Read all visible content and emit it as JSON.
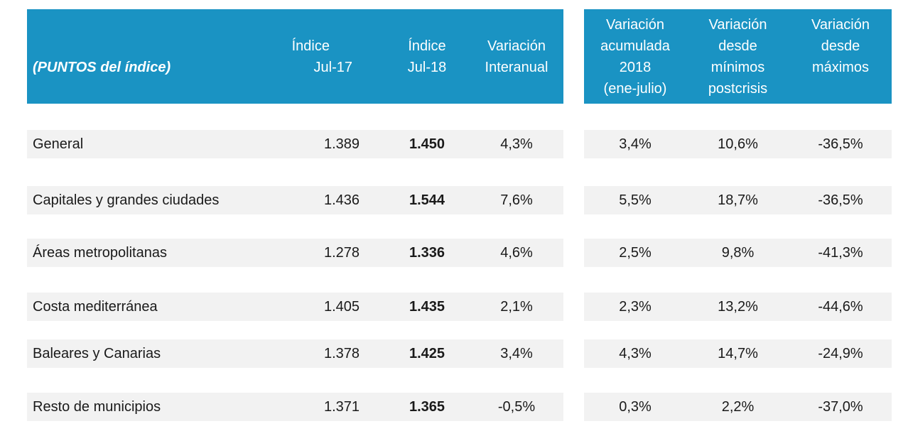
{
  "colors": {
    "header_blue": "#1a93c3",
    "row_gray": "#f2f2f2",
    "header_text": "#ffffff",
    "body_text": "#1a1a1a"
  },
  "header": {
    "title": "(PUNTOS del índice)",
    "left_columns": [
      {
        "lines": [
          "Índice",
          "Jul-17"
        ]
      },
      {
        "lines": [
          "Índice",
          "Jul-18"
        ]
      },
      {
        "lines": [
          "Variación",
          "Interanual"
        ]
      }
    ],
    "right_columns": [
      {
        "lines": [
          "Variación",
          "acumulada",
          "2018",
          "(ene-julio)"
        ]
      },
      {
        "lines": [
          "Variación",
          "desde",
          "mínimos",
          "postcrisis"
        ]
      },
      {
        "lines": [
          "Variación",
          "desde",
          "máximos"
        ]
      }
    ]
  },
  "rows": [
    {
      "label": "General",
      "indice_jul17": "1.389",
      "indice_jul18": "1.450",
      "variacion_interanual": "4,3%",
      "variacion_acumulada_2018": "3,4%",
      "variacion_desde_minimos": "10,6%",
      "variacion_desde_maximos": "-36,5%"
    },
    {
      "label": "Capitales y grandes ciudades",
      "indice_jul17": "1.436",
      "indice_jul18": "1.544",
      "variacion_interanual": "7,6%",
      "variacion_acumulada_2018": "5,5%",
      "variacion_desde_minimos": "18,7%",
      "variacion_desde_maximos": "-36,5%"
    },
    {
      "label": "Áreas metropolitanas",
      "indice_jul17": "1.278",
      "indice_jul18": "1.336",
      "variacion_interanual": "4,6%",
      "variacion_acumulada_2018": "2,5%",
      "variacion_desde_minimos": "9,8%",
      "variacion_desde_maximos": "-41,3%"
    },
    {
      "label": "Costa mediterránea",
      "indice_jul17": "1.405",
      "indice_jul18": "1.435",
      "variacion_interanual": "2,1%",
      "variacion_acumulada_2018": "2,3%",
      "variacion_desde_minimos": "13,2%",
      "variacion_desde_maximos": "-44,6%"
    },
    {
      "label": "Baleares y Canarias",
      "indice_jul17": "1.378",
      "indice_jul18": "1.425",
      "variacion_interanual": "3,4%",
      "variacion_acumulada_2018": "4,3%",
      "variacion_desde_minimos": "14,7%",
      "variacion_desde_maximos": "-24,9%"
    },
    {
      "label": "Resto de municipios",
      "indice_jul17": "1.371",
      "indice_jul18": "1.365",
      "variacion_interanual": "-0,5%",
      "variacion_acumulada_2018": "0,3%",
      "variacion_desde_minimos": "2,2%",
      "variacion_desde_maximos": "-37,0%"
    }
  ],
  "chart_data": {
    "type": "table",
    "title": "(PUNTOS del índice)",
    "columns": [
      "Índice Jul-17",
      "Índice Jul-18",
      "Variación Interanual",
      "Variación acumulada 2018 (ene-julio)",
      "Variación desde mínimos postcrisis",
      "Variación desde máximos"
    ],
    "rows": [
      [
        "General",
        "1.389",
        "1.450",
        "4,3%",
        "3,4%",
        "10,6%",
        "-36,5%"
      ],
      [
        "Capitales y grandes ciudades",
        "1.436",
        "1.544",
        "7,6%",
        "5,5%",
        "18,7%",
        "-36,5%"
      ],
      [
        "Áreas metropolitanas",
        "1.278",
        "1.336",
        "4,6%",
        "2,5%",
        "9,8%",
        "-41,3%"
      ],
      [
        "Costa mediterránea",
        "1.405",
        "1.435",
        "2,1%",
        "2,3%",
        "13,2%",
        "-44,6%"
      ],
      [
        "Baleares y Canarias",
        "1.378",
        "1.425",
        "3,4%",
        "4,3%",
        "14,7%",
        "-24,9%"
      ],
      [
        "Resto de municipios",
        "1.371",
        "1.365",
        "-0,5%",
        "0,3%",
        "2,2%",
        "-37,0%"
      ]
    ],
    "notes": "Índice Jul-18 column rendered in bold; header on blue band split in two blocks"
  }
}
